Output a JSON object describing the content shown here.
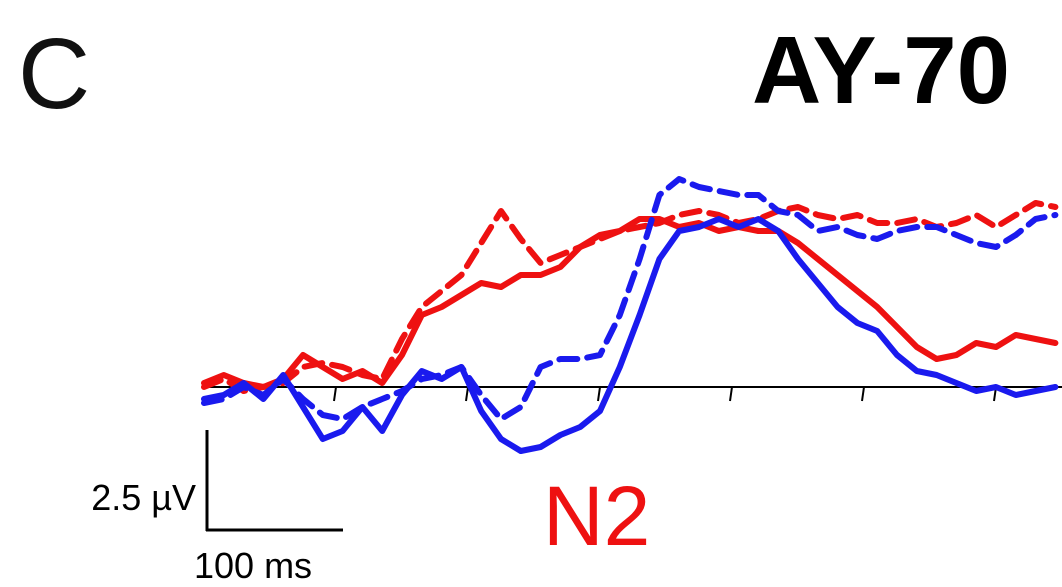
{
  "panel_label": "C",
  "chart_data": {
    "type": "line",
    "title": "AY-70",
    "xlabel": "",
    "ylabel": "",
    "scale_bar": {
      "amplitude_label": "2.5 µV",
      "time_label": "100 ms",
      "amplitude_uv": 2.5,
      "time_ms": 100
    },
    "annotations": [
      {
        "text": "N2",
        "color": "#ee1111"
      }
    ],
    "xlim": [
      0,
      650
    ],
    "ylim": [
      -2.0,
      5.5
    ],
    "x_ticks": [
      100,
      200,
      300,
      400,
      500,
      600
    ],
    "x": [
      0,
      15,
      30,
      45,
      60,
      75,
      90,
      105,
      120,
      135,
      150,
      165,
      180,
      195,
      210,
      225,
      240,
      255,
      270,
      285,
      300,
      315,
      330,
      345,
      360,
      375,
      390,
      405,
      420,
      435,
      450,
      465,
      480,
      495,
      510,
      525,
      540,
      555,
      570,
      585,
      600,
      615,
      630,
      645
    ],
    "series": [
      {
        "color": "#ee1111",
        "dash": "solid",
        "values": [
          0.1,
          0.3,
          0.1,
          0.0,
          0.2,
          0.8,
          0.5,
          0.2,
          0.4,
          0.1,
          0.8,
          1.8,
          2.0,
          2.3,
          2.6,
          2.5,
          2.8,
          2.8,
          3.0,
          3.5,
          3.8,
          3.9,
          4.2,
          4.2,
          4.0,
          4.1,
          3.9,
          4.0,
          3.9,
          3.9,
          3.6,
          3.2,
          2.8,
          2.4,
          2.0,
          1.5,
          1.0,
          0.7,
          0.8,
          1.1,
          1.0,
          1.3,
          1.2,
          1.1
        ]
      },
      {
        "color": "#ee1111",
        "dash": "dashed",
        "values": [
          0.0,
          0.2,
          -0.1,
          0.0,
          0.1,
          0.5,
          0.6,
          0.5,
          0.3,
          0.2,
          1.2,
          2.0,
          2.4,
          2.8,
          3.6,
          4.4,
          3.7,
          3.1,
          3.3,
          3.5,
          3.7,
          3.9,
          4.0,
          4.1,
          4.3,
          4.4,
          4.3,
          4.1,
          4.2,
          4.4,
          4.5,
          4.3,
          4.2,
          4.3,
          4.1,
          4.1,
          4.2,
          4.0,
          4.1,
          4.3,
          4.0,
          4.3,
          4.6,
          4.5
        ]
      },
      {
        "color": "#1a1aee",
        "dash": "solid",
        "values": [
          -0.3,
          -0.2,
          0.1,
          -0.3,
          0.3,
          -0.5,
          -1.3,
          -1.1,
          -0.5,
          -1.1,
          -0.2,
          0.4,
          0.2,
          0.5,
          -0.6,
          -1.3,
          -1.6,
          -1.5,
          -1.2,
          -1.0,
          -0.6,
          0.5,
          1.8,
          3.2,
          3.9,
          4.0,
          4.2,
          4.0,
          4.2,
          3.9,
          3.2,
          2.6,
          2.0,
          1.6,
          1.4,
          0.8,
          0.4,
          0.3,
          0.1,
          -0.1,
          0.0,
          -0.2,
          -0.1,
          0.0
        ]
      },
      {
        "color": "#1a1aee",
        "dash": "dashed",
        "values": [
          -0.4,
          -0.3,
          0.0,
          -0.2,
          0.2,
          -0.3,
          -0.7,
          -0.8,
          -0.5,
          -0.3,
          -0.1,
          0.2,
          0.3,
          0.5,
          -0.2,
          -0.8,
          -0.5,
          0.5,
          0.7,
          0.7,
          0.8,
          1.8,
          3.2,
          4.8,
          5.2,
          5.0,
          4.9,
          4.8,
          4.8,
          4.4,
          4.3,
          3.9,
          4.0,
          3.8,
          3.7,
          3.9,
          4.0,
          4.0,
          3.8,
          3.6,
          3.5,
          3.8,
          4.2,
          4.3
        ]
      }
    ]
  }
}
